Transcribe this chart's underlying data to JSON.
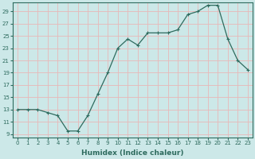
{
  "x": [
    0,
    1,
    2,
    3,
    4,
    5,
    6,
    7,
    8,
    9,
    10,
    11,
    12,
    13,
    14,
    15,
    16,
    17,
    18,
    19,
    20,
    21,
    22,
    23
  ],
  "y": [
    13,
    13,
    13,
    12.5,
    12,
    9.5,
    9.5,
    12,
    15.5,
    19,
    23,
    24.5,
    23.5,
    25.5,
    25.5,
    25.5,
    26,
    28.5,
    29,
    30,
    30,
    24.5,
    21,
    19.5
  ],
  "line_color": "#2e6b5e",
  "marker": "+",
  "markersize": 3.5,
  "linewidth": 0.9,
  "bg_color": "#cce8e8",
  "grid_color": "#e8b8b8",
  "title": "",
  "xlabel": "Humidex (Indice chaleur)",
  "ylabel": "",
  "xlim": [
    -0.5,
    23.5
  ],
  "ylim": [
    8.5,
    30.5
  ],
  "yticks": [
    9,
    11,
    13,
    15,
    17,
    19,
    21,
    23,
    25,
    27,
    29
  ],
  "xticks": [
    0,
    1,
    2,
    3,
    4,
    5,
    6,
    7,
    8,
    9,
    10,
    11,
    12,
    13,
    14,
    15,
    16,
    17,
    18,
    19,
    20,
    21,
    22,
    23
  ],
  "tick_fontsize": 5.0,
  "xlabel_fontsize": 6.5,
  "axis_color": "#2e6b5e"
}
